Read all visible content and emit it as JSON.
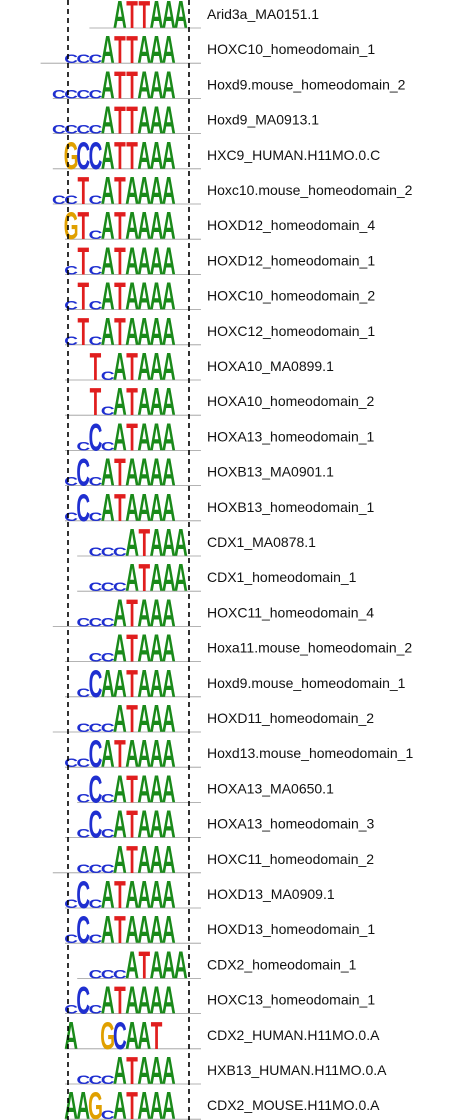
{
  "chart_data": {
    "type": "motif-alignment",
    "motifs": [
      {
        "label": "Arid3a_MA0151.1",
        "logo": "..ATTAAA"
      },
      {
        "label": "HOXC10_homeodomain_1",
        "logo": "..cccATTAAA."
      },
      {
        "label": "Hoxd9.mouse_homeodomain_2",
        "logo": "ccccATTAAA."
      },
      {
        "label": "Hoxd9_MA0913.1",
        "logo": "ccccATTAAA."
      },
      {
        "label": "HXC9_HUMAN.H11MO.0.C",
        "logo": ".GCCATTAAA."
      },
      {
        "label": "Hoxc10.mouse_homeodomain_2",
        "logo": "ccTcATAAAA."
      },
      {
        "label": "HOXD12_homeodomain_4",
        "logo": "GTcATAAAA."
      },
      {
        "label": "HOXD12_homeodomain_1",
        "logo": "cTcATAAAA."
      },
      {
        "label": "HOXC10_homeodomain_2",
        "logo": "cTcATAAAA."
      },
      {
        "label": "HOXC12_homeodomain_1",
        "logo": "cTcATAAAA."
      },
      {
        "label": "HOXA10_MA0899.1",
        "logo": "..TcATAAA."
      },
      {
        "label": "HOXA10_homeodomain_2",
        "logo": "..TcATAAA."
      },
      {
        "label": "HOXA13_homeodomain_1",
        "logo": ".cCcATAAA."
      },
      {
        "label": "HOXB13_MA0901.1",
        "logo": "cCcATAAAA."
      },
      {
        "label": "HOXB13_homeodomain_1",
        "logo": "cCcATAAAA."
      },
      {
        "label": "CDX1_MA0878.1",
        "logo": ".cccATAAA"
      },
      {
        "label": "CDX1_homeodomain_1",
        "logo": ".cccATAAA"
      },
      {
        "label": "HOXC11_homeodomain_4",
        "logo": "..cccATAAA."
      },
      {
        "label": "Hoxa11.mouse_homeodomain_2",
        "logo": "..ccATAAA."
      },
      {
        "label": "Hoxd9.mouse_homeodomain_1",
        "logo": ".cCAATAAA."
      },
      {
        "label": "HOXD11_homeodomain_2",
        "logo": "..cccATAAA."
      },
      {
        "label": "Hoxd13.mouse_homeodomain_1",
        "logo": "ccCATAAAA."
      },
      {
        "label": "HOXA13_MA0650.1",
        "logo": "cCcATAAA."
      },
      {
        "label": "HOXA13_homeodomain_3",
        "logo": ".cCcATAAA."
      },
      {
        "label": "HOXC11_homeodomain_2",
        "logo": "..cccATAAA."
      },
      {
        "label": "HOXD13_MA0909.1",
        "logo": "cCcATAAAA."
      },
      {
        "label": "HOXD13_homeodomain_1",
        "logo": "cCcATAAAA."
      },
      {
        "label": "CDX2_homeodomain_1",
        "logo": ".cccATAAA"
      },
      {
        "label": "HOXC13_homeodomain_1",
        "logo": "cCcATAAAA."
      },
      {
        "label": "CDX2_HUMAN.H11MO.0.A",
        "logo": "A..GCAAT.."
      },
      {
        "label": "HXB13_HUMAN.H11MO.0.A",
        "logo": ".cccATAAA."
      },
      {
        "label": "CDX2_MOUSE.H11MO.0.A",
        "logo": "AAGcATAAA."
      }
    ],
    "colors": {
      "A": "#1a8a1a",
      "C": "#1f2fd0",
      "G": "#e0a000",
      "T": "#e01e1e",
      "guide": "#000000"
    },
    "guide_style": "dashed-vertical"
  }
}
